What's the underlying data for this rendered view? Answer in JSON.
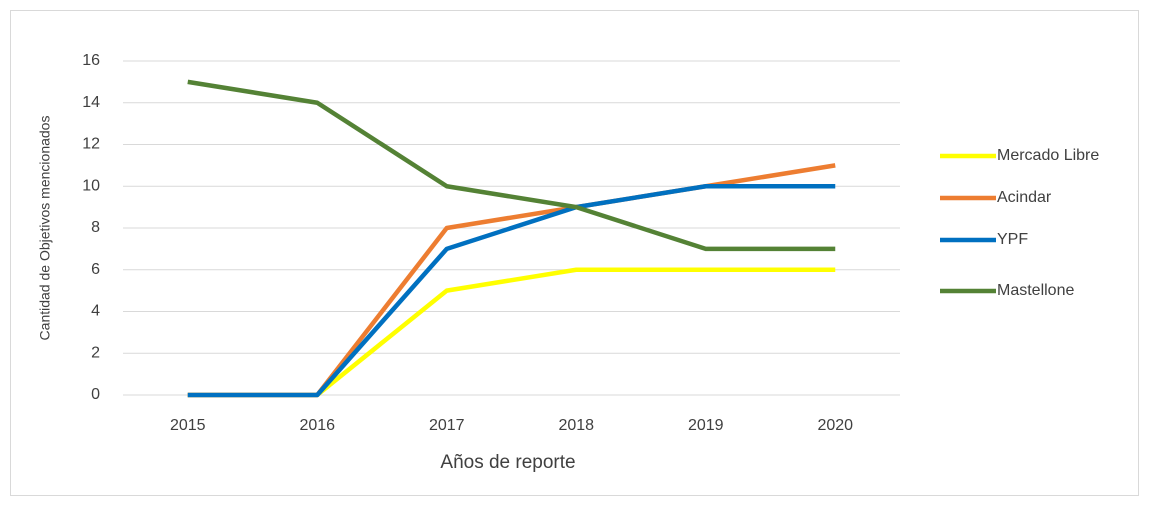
{
  "chart_data": {
    "type": "line",
    "x_label": "Años de reporte",
    "y_label": "Cantidad de Objetivos mencionados",
    "categories": [
      "2015",
      "2016",
      "2017",
      "2018",
      "2019",
      "2020"
    ],
    "series": [
      {
        "name": "Mercado Libre",
        "color": "#ffff00",
        "values": [
          0,
          0,
          5,
          6,
          6,
          6
        ]
      },
      {
        "name": "Acindar",
        "color": "#ed7d31",
        "values": [
          0,
          0,
          8,
          9,
          10,
          11
        ]
      },
      {
        "name": "YPF",
        "color": "#0070c0",
        "values": [
          0,
          0,
          7,
          9,
          10,
          10
        ]
      },
      {
        "name": "Mastellone",
        "color": "#548235",
        "values": [
          15,
          14,
          10,
          9,
          7,
          7
        ]
      }
    ],
    "ylim": [
      0,
      16
    ],
    "yticks": [
      0,
      2,
      4,
      6,
      8,
      10,
      12,
      14,
      16
    ],
    "grid": true,
    "legend": "right"
  }
}
